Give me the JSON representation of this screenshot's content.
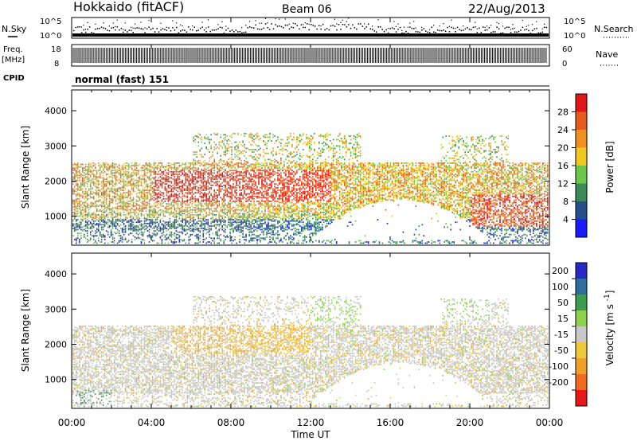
{
  "header": {
    "station": "Hokkaido (fitACF)",
    "beam": "Beam 06",
    "date": "22/Aug/2013"
  },
  "noise_panel": {
    "left_label": "N.Sky",
    "right_label": "N.Search",
    "tick_top": "10^5",
    "tick_bottom": "10^0"
  },
  "freq_panel": {
    "left_label_1": "Freq.",
    "left_label_2": "[MHz]",
    "tick_top": "18",
    "tick_bottom": "8",
    "right_label": "Nave",
    "right_tick_top": "60",
    "right_tick_bottom": "0"
  },
  "cpid": {
    "label": "CPID",
    "value": "normal (fast) 151"
  },
  "chart_data": [
    {
      "type": "heatmap",
      "name": "power",
      "ylabel": "Slant Range [km]",
      "yticks": [
        "1000",
        "2000",
        "3000",
        "4000"
      ],
      "ylim": [
        180,
        4590
      ],
      "xlim": [
        0,
        24
      ],
      "colorbar_label": "Power [dB]",
      "colorbar_ticks": [
        "4",
        "8",
        "12",
        "16",
        "20",
        "24",
        "28"
      ],
      "colorbar_range": [
        0,
        32
      ],
      "colors": [
        "#1a1aff",
        "#23508c",
        "#3a8c5a",
        "#6cc84a",
        "#f0c820",
        "#f09020",
        "#e85a20",
        "#e01818"
      ]
    },
    {
      "type": "heatmap",
      "name": "velocity",
      "ylabel": "Slant Range [km]",
      "yticks": [
        "1000",
        "2000",
        "3000",
        "4000"
      ],
      "ylim": [
        180,
        4590
      ],
      "xlim": [
        0,
        24
      ],
      "xticks": [
        "00:00",
        "04:00",
        "08:00",
        "12:00",
        "16:00",
        "20:00",
        "00:00"
      ],
      "xlabel": "Time UT",
      "colorbar_label": "Velocity [m s^-1]",
      "colorbar_ticks": [
        "200",
        "100",
        "50",
        "15",
        "-15",
        "-50",
        "-100",
        "-200"
      ],
      "colors": [
        "#2828c8",
        "#2c6ea0",
        "#3c9c50",
        "#8cd04c",
        "#c8c8c8",
        "#f0c83c",
        "#f0a028",
        "#f06a20",
        "#e81818"
      ]
    }
  ]
}
